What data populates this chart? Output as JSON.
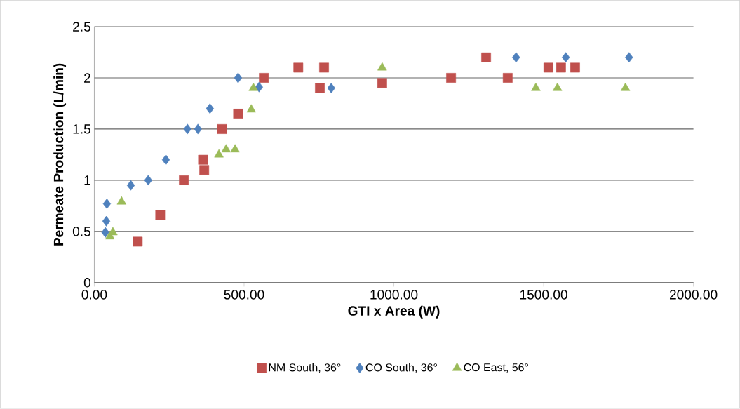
{
  "chart_data": {
    "type": "scatter",
    "xlabel": "GTI x Area (W)",
    "ylabel": "Permeate Production (L/min)",
    "xlim": [
      0,
      2000
    ],
    "ylim": [
      0,
      2.5
    ],
    "xticks": [
      {
        "value": 0,
        "label": "0.00"
      },
      {
        "value": 500,
        "label": "500.00"
      },
      {
        "value": 1000,
        "label": "1000.00"
      },
      {
        "value": 1500,
        "label": "1500.00"
      },
      {
        "value": 2000,
        "label": "2000.00"
      }
    ],
    "yticks": [
      0,
      0.5,
      1,
      1.5,
      2,
      2.5
    ],
    "grid": "y",
    "legend": "bottom",
    "series": [
      {
        "name": "NM South, 36°",
        "color": "#c0504d",
        "marker": "square",
        "x": [
          145,
          220,
          299,
          363,
          367,
          426,
          480,
          566,
          681,
          767,
          753,
          961,
          1191,
          1308,
          1380,
          1516,
          1558,
          1605
        ],
        "values": [
          0.4,
          0.66,
          1.0,
          1.2,
          1.1,
          1.5,
          1.65,
          2.0,
          2.1,
          2.1,
          1.9,
          1.95,
          2.0,
          2.2,
          2.0,
          2.1,
          2.1,
          2.1
        ]
      },
      {
        "name": "CO South, 36°",
        "color": "#4f81bd",
        "marker": "diamond",
        "x": [
          37,
          40,
          42,
          122,
          180,
          239,
          311,
          346,
          386,
          480,
          550,
          791,
          1408,
          1574,
          1785
        ],
        "values": [
          0.49,
          0.6,
          0.77,
          0.95,
          1.0,
          1.2,
          1.5,
          1.5,
          1.7,
          2.0,
          1.91,
          1.9,
          2.2,
          2.2,
          2.2
        ]
      },
      {
        "name": "CO East, 56°",
        "color": "#9bbb59",
        "marker": "triangle",
        "x": [
          52,
          62,
          91,
          416,
          440,
          470,
          524,
          531,
          961,
          1474,
          1546,
          1773
        ],
        "values": [
          0.45,
          0.49,
          0.79,
          1.25,
          1.3,
          1.3,
          1.69,
          1.9,
          2.1,
          1.9,
          1.9,
          1.9
        ]
      }
    ]
  }
}
